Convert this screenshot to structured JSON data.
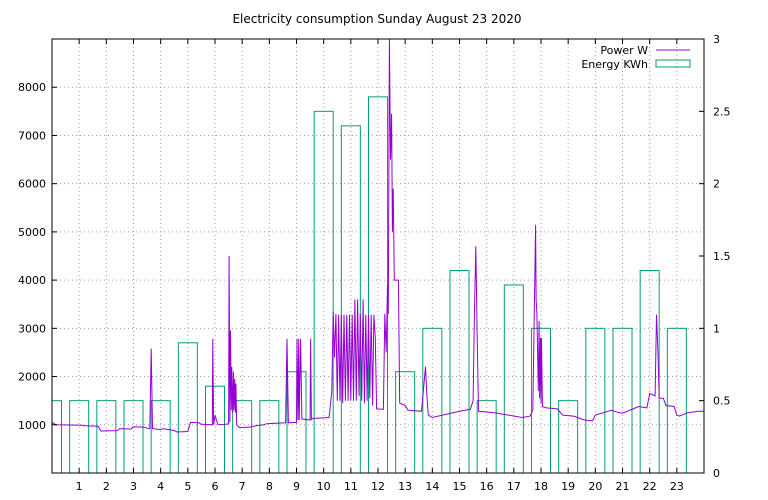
{
  "chart_data": {
    "type": "bar",
    "title": "Electricity consumption Sunday August 23 2020",
    "xlim": [
      0,
      24
    ],
    "x_ticks": [
      1,
      2,
      3,
      4,
      5,
      6,
      7,
      8,
      9,
      10,
      11,
      12,
      13,
      14,
      15,
      16,
      17,
      18,
      19,
      20,
      21,
      22,
      23
    ],
    "grid": true,
    "legend_position": "top-right",
    "y_left": {
      "lim": [
        0,
        9000
      ],
      "ticks": [
        1000,
        2000,
        3000,
        4000,
        5000,
        6000,
        7000,
        8000
      ],
      "label": ""
    },
    "y_right": {
      "lim": [
        0,
        3
      ],
      "ticks": [
        "0",
        "0.5",
        "1",
        "1.5",
        "2",
        "2.5",
        "3"
      ],
      "label": ""
    },
    "series": [
      {
        "name": "Energy KWh",
        "axis": "right",
        "style": "boxes",
        "color": "#009e73",
        "hours": [
          0,
          1,
          2,
          3,
          4,
          5,
          6,
          7,
          8,
          9,
          10,
          11,
          12,
          13,
          14,
          15,
          16,
          17,
          18,
          19,
          20,
          21,
          22,
          23
        ],
        "values": [
          0.5,
          0.5,
          0.5,
          0.5,
          0.5,
          0.9,
          0.6,
          0.5,
          0.5,
          0.7,
          2.5,
          2.4,
          2.6,
          0.7,
          1.0,
          1.4,
          0.5,
          1.3,
          1.0,
          0.5,
          1.0,
          1.0,
          1.4,
          1.0
        ]
      },
      {
        "name": "Power W",
        "axis": "left",
        "style": "line",
        "color": "#9400d3",
        "points": [
          [
            0,
            1050
          ],
          [
            0.15,
            1000
          ],
          [
            1.1,
            990
          ],
          [
            1.2,
            980
          ],
          [
            1.7,
            970
          ],
          [
            1.8,
            870
          ],
          [
            2.4,
            880
          ],
          [
            2.5,
            920
          ],
          [
            2.9,
            910
          ],
          [
            3.0,
            960
          ],
          [
            3.4,
            950
          ],
          [
            3.5,
            930
          ],
          [
            3.6,
            920
          ],
          [
            3.65,
            2580
          ],
          [
            3.7,
            920
          ],
          [
            4.0,
            900
          ],
          [
            4.1,
            920
          ],
          [
            4.5,
            880
          ],
          [
            4.6,
            850
          ],
          [
            5.0,
            860
          ],
          [
            5.1,
            1050
          ],
          [
            5.4,
            1040
          ],
          [
            5.5,
            1010
          ],
          [
            5.9,
            1000
          ],
          [
            5.92,
            2780
          ],
          [
            5.95,
            1000
          ],
          [
            6.0,
            1200
          ],
          [
            6.1,
            1010
          ],
          [
            6.3,
            1000
          ],
          [
            6.5,
            1020
          ],
          [
            6.52,
            4500
          ],
          [
            6.55,
            1050
          ],
          [
            6.57,
            2950
          ],
          [
            6.6,
            1300
          ],
          [
            6.62,
            2200
          ],
          [
            6.65,
            1250
          ],
          [
            6.68,
            2100
          ],
          [
            6.7,
            1300
          ],
          [
            6.73,
            1950
          ],
          [
            6.75,
            1250
          ],
          [
            6.77,
            1850
          ],
          [
            6.8,
            1000
          ],
          [
            6.9,
            940
          ],
          [
            7.4,
            960
          ],
          [
            7.5,
            980
          ],
          [
            7.8,
            1000
          ],
          [
            7.9,
            1020
          ],
          [
            8.6,
            1040
          ],
          [
            8.65,
            2780
          ],
          [
            8.7,
            1040
          ],
          [
            9.0,
            1050
          ],
          [
            9.02,
            2780
          ],
          [
            9.05,
            1100
          ],
          [
            9.08,
            2780
          ],
          [
            9.1,
            1100
          ],
          [
            9.15,
            2780
          ],
          [
            9.2,
            1120
          ],
          [
            9.5,
            1100
          ],
          [
            9.52,
            2780
          ],
          [
            9.55,
            1110
          ],
          [
            9.6,
            1130
          ],
          [
            10.2,
            1150
          ],
          [
            10.3,
            1700
          ],
          [
            10.35,
            3350
          ],
          [
            10.4,
            2400
          ],
          [
            10.45,
            3300
          ],
          [
            10.5,
            1500
          ],
          [
            10.55,
            3280
          ],
          [
            10.6,
            1500
          ],
          [
            10.65,
            3280
          ],
          [
            10.7,
            1450
          ],
          [
            10.75,
            3280
          ],
          [
            10.8,
            1500
          ],
          [
            10.85,
            3280
          ],
          [
            10.9,
            1500
          ],
          [
            10.95,
            3280
          ],
          [
            11.0,
            1500
          ],
          [
            11.05,
            3280
          ],
          [
            11.1,
            1500
          ],
          [
            11.15,
            3600
          ],
          [
            11.2,
            1500
          ],
          [
            11.25,
            3600
          ],
          [
            11.3,
            1600
          ],
          [
            11.35,
            3300
          ],
          [
            11.4,
            1500
          ],
          [
            11.45,
            3600
          ],
          [
            11.5,
            1450
          ],
          [
            11.55,
            3280
          ],
          [
            11.6,
            1500
          ],
          [
            11.65,
            3280
          ],
          [
            11.7,
            1550
          ],
          [
            11.75,
            3280
          ],
          [
            11.8,
            1400
          ],
          [
            11.85,
            3280
          ],
          [
            11.9,
            2800
          ],
          [
            11.95,
            1330
          ],
          [
            12.2,
            1320
          ],
          [
            12.25,
            3300
          ],
          [
            12.3,
            2500
          ],
          [
            12.35,
            3900
          ],
          [
            12.38,
            3300
          ],
          [
            12.42,
            9000
          ],
          [
            12.46,
            6500
          ],
          [
            12.5,
            7450
          ],
          [
            12.53,
            5000
          ],
          [
            12.56,
            5900
          ],
          [
            12.6,
            4000
          ],
          [
            12.75,
            4000
          ],
          [
            12.8,
            1450
          ],
          [
            13.0,
            1400
          ],
          [
            13.1,
            1300
          ],
          [
            13.6,
            1280
          ],
          [
            13.7,
            1900
          ],
          [
            13.75,
            2200
          ],
          [
            13.8,
            1600
          ],
          [
            13.85,
            1200
          ],
          [
            14.0,
            1150
          ],
          [
            15.0,
            1280
          ],
          [
            15.2,
            1300
          ],
          [
            15.4,
            1320
          ],
          [
            15.5,
            1500
          ],
          [
            15.55,
            3300
          ],
          [
            15.6,
            4700
          ],
          [
            15.65,
            2800
          ],
          [
            15.7,
            1280
          ],
          [
            16.3,
            1250
          ],
          [
            16.8,
            1200
          ],
          [
            17.3,
            1150
          ],
          [
            17.6,
            1180
          ],
          [
            17.7,
            1300
          ],
          [
            17.8,
            5150
          ],
          [
            17.82,
            3600
          ],
          [
            17.85,
            3300
          ],
          [
            17.9,
            1700
          ],
          [
            17.93,
            3150
          ],
          [
            17.95,
            1550
          ],
          [
            17.98,
            2800
          ],
          [
            18.0,
            1450
          ],
          [
            18.02,
            2800
          ],
          [
            18.05,
            1380
          ],
          [
            18.2,
            1350
          ],
          [
            18.6,
            1330
          ],
          [
            18.8,
            1200
          ],
          [
            19.2,
            1180
          ],
          [
            19.6,
            1100
          ],
          [
            19.9,
            1080
          ],
          [
            20.0,
            1200
          ],
          [
            20.3,
            1250
          ],
          [
            20.6,
            1300
          ],
          [
            20.8,
            1260
          ],
          [
            21.0,
            1240
          ],
          [
            21.6,
            1380
          ],
          [
            21.9,
            1350
          ],
          [
            22.0,
            1650
          ],
          [
            22.2,
            1600
          ],
          [
            22.25,
            3280
          ],
          [
            22.3,
            2600
          ],
          [
            22.35,
            1550
          ],
          [
            22.5,
            1550
          ],
          [
            22.6,
            1400
          ],
          [
            22.9,
            1380
          ],
          [
            23.0,
            1200
          ],
          [
            23.1,
            1180
          ],
          [
            23.4,
            1250
          ],
          [
            23.8,
            1280
          ],
          [
            24.0,
            1280
          ]
        ]
      }
    ]
  }
}
